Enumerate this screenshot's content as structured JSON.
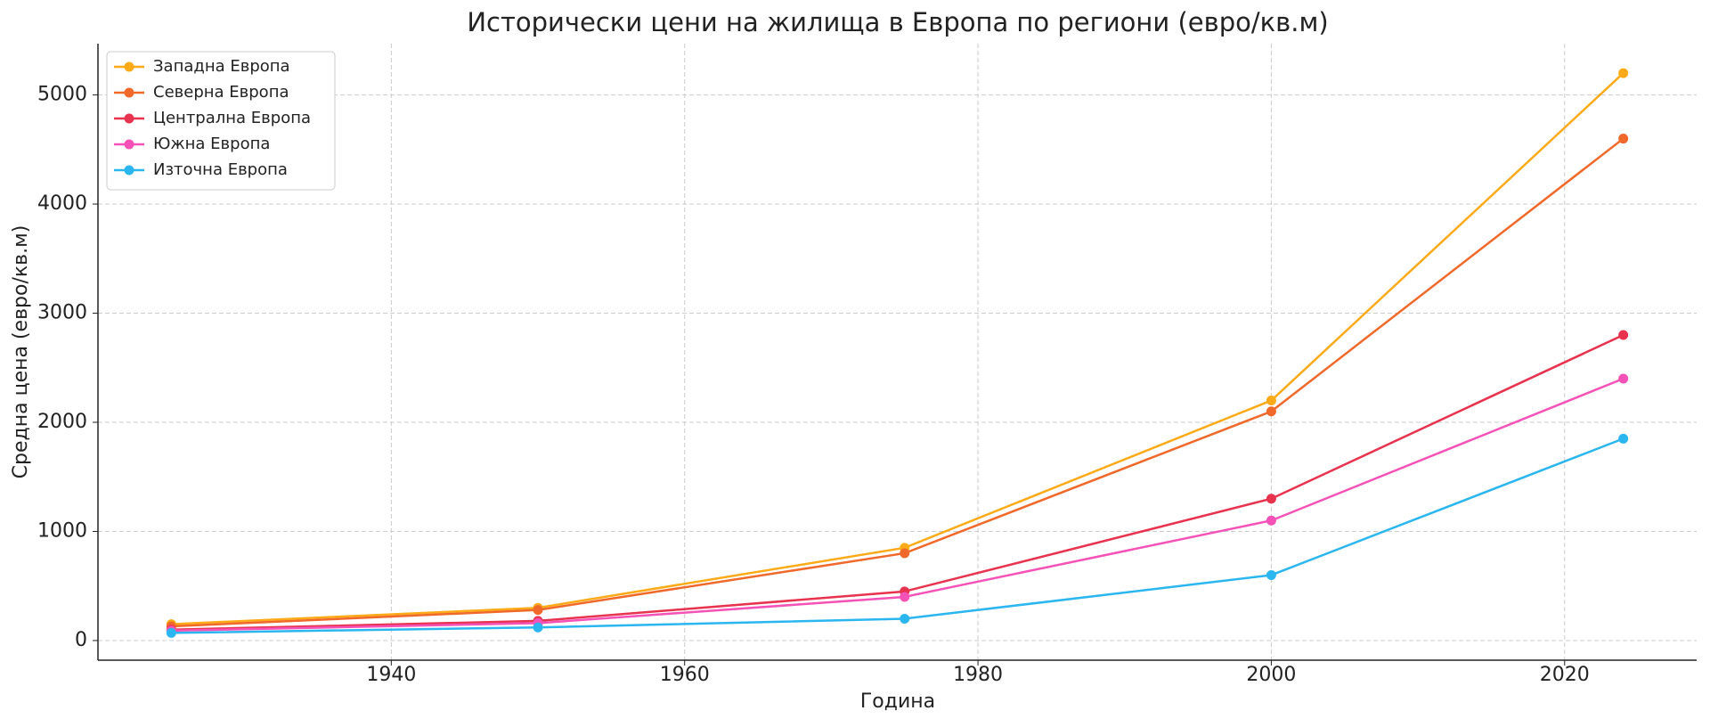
{
  "chart_data": {
    "type": "line",
    "title": "Исторически цени на жилища в Европа по региони (евро/кв.м)",
    "xlabel": "Година",
    "ylabel": "Средна цена (евро/кв.м)",
    "x": [
      1925,
      1950,
      1975,
      2000,
      2024
    ],
    "series": [
      {
        "name": "Западна Европа",
        "color": "#fcaa17",
        "values": [
          150,
          300,
          850,
          2200,
          5200
        ]
      },
      {
        "name": "Северна Европа",
        "color": "#f0692a",
        "values": [
          130,
          280,
          800,
          2100,
          4600
        ]
      },
      {
        "name": "Централна Европа",
        "color": "#e8334f",
        "values": [
          100,
          180,
          450,
          1300,
          2800
        ]
      },
      {
        "name": "Южна Европа",
        "color": "#f552b8",
        "values": [
          90,
          160,
          400,
          1100,
          2400
        ]
      },
      {
        "name": "Източна Европа",
        "color": "#2bb6f0",
        "values": [
          70,
          120,
          200,
          600,
          1850
        ]
      }
    ],
    "xlim": [
      1920,
      2029
    ],
    "ylim": [
      -180,
      5470
    ],
    "xticks": [
      1940,
      1960,
      1980,
      2000,
      2020
    ],
    "yticks": [
      0,
      1000,
      2000,
      3000,
      4000,
      5000
    ],
    "grid": true,
    "legend": "upper-left"
  }
}
